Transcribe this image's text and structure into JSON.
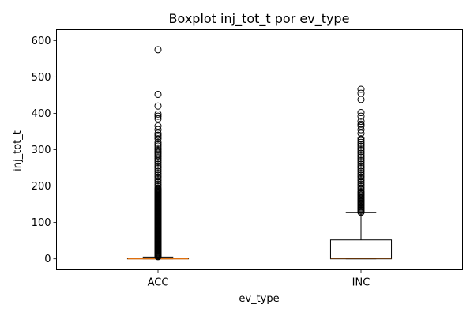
{
  "chart_data": {
    "type": "boxplot",
    "title": "Boxplot inj_tot_t por ev_type",
    "xlabel": "ev_type",
    "ylabel": "inj_tot_t",
    "categories": [
      "ACC",
      "INC"
    ],
    "ylim": [
      -30,
      630
    ],
    "yticks": [
      0,
      100,
      200,
      300,
      400,
      500,
      600
    ],
    "grid": false,
    "boxes": [
      {
        "category": "ACC",
        "whisker_low": 0,
        "q1": 0,
        "median": 0,
        "q3": 2,
        "whisker_high": 5,
        "outliers": [
          6,
          8,
          10,
          12,
          14,
          16,
          18,
          20,
          22,
          24,
          26,
          28,
          30,
          32,
          34,
          36,
          38,
          40,
          42,
          44,
          46,
          48,
          50,
          52,
          54,
          56,
          58,
          60,
          62,
          64,
          66,
          68,
          70,
          72,
          74,
          76,
          78,
          80,
          82,
          84,
          86,
          88,
          90,
          92,
          94,
          96,
          98,
          100,
          102,
          104,
          106,
          108,
          110,
          112,
          114,
          116,
          118,
          120,
          122,
          124,
          126,
          128,
          130,
          132,
          134,
          136,
          138,
          140,
          142,
          144,
          146,
          148,
          150,
          152,
          154,
          156,
          158,
          160,
          162,
          164,
          166,
          168,
          170,
          172,
          174,
          176,
          178,
          180,
          182,
          184,
          186,
          188,
          190,
          192,
          195,
          200,
          205,
          210,
          215,
          220,
          225,
          230,
          235,
          240,
          245,
          250,
          255,
          260,
          265,
          270,
          275,
          280,
          284,
          288,
          292,
          296,
          300,
          305,
          310,
          315,
          320,
          330,
          335,
          340,
          345,
          355,
          365,
          385,
          392,
          398,
          420,
          452,
          575
        ]
      },
      {
        "category": "INC",
        "whisker_low": 0,
        "q1": 0,
        "median": 2,
        "q3": 52,
        "whisker_high": 128,
        "outliers": [
          128,
          131,
          134,
          137,
          140,
          143,
          146,
          149,
          152,
          155,
          158,
          161,
          164,
          167,
          170,
          173,
          176,
          179,
          182,
          185,
          190,
          195,
          200,
          205,
          210,
          215,
          220,
          225,
          230,
          235,
          240,
          245,
          250,
          255,
          260,
          265,
          270,
          275,
          280,
          285,
          290,
          295,
          300,
          305,
          310,
          315,
          320,
          325,
          330,
          345,
          355,
          365,
          370,
          378,
          392,
          402,
          438,
          455,
          466
        ]
      }
    ],
    "colors": {
      "box_edge": "#000000",
      "median": "#ff7f0e",
      "outlier_edge": "#000000"
    }
  }
}
